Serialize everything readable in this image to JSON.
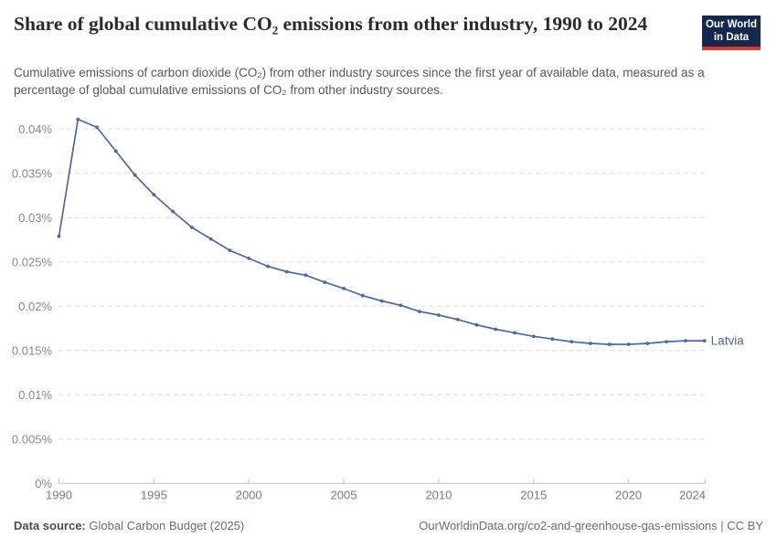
{
  "header": {
    "title": "Share of global cumulative CO₂ emissions from other industry, 1990 to 2024",
    "subtitle": "Cumulative emissions of carbon dioxide (CO₂) from other industry sources since the first year of available data, measured as a percentage of global cumulative emissions of CO₂ from other industry sources."
  },
  "logo": {
    "line1": "Our World",
    "line2": "in Data",
    "bg_color": "#12294d",
    "bar_color": "#e0372d"
  },
  "chart_data": {
    "type": "line",
    "title": "Share of global cumulative CO₂ emissions from other industry, 1990 to 2024",
    "unit": "%",
    "x": [
      1990,
      1991,
      1992,
      1993,
      1994,
      1995,
      1996,
      1997,
      1998,
      1999,
      2000,
      2001,
      2002,
      2003,
      2004,
      2005,
      2006,
      2007,
      2008,
      2009,
      2010,
      2011,
      2012,
      2013,
      2014,
      2015,
      2016,
      2017,
      2018,
      2019,
      2020,
      2021,
      2022,
      2023,
      2024
    ],
    "series": [
      {
        "name": "Latvia",
        "color": "#4a69a5",
        "values": [
          0.0279,
          0.0411,
          0.0402,
          0.0375,
          0.0348,
          0.0326,
          0.0307,
          0.0289,
          0.0276,
          0.0263,
          0.0254,
          0.0245,
          0.0239,
          0.0235,
          0.0227,
          0.022,
          0.0212,
          0.0206,
          0.0201,
          0.0194,
          0.019,
          0.0185,
          0.0179,
          0.0174,
          0.017,
          0.0166,
          0.0163,
          0.016,
          0.0158,
          0.0157,
          0.0157,
          0.0158,
          0.016,
          0.0161,
          0.0161
        ]
      }
    ],
    "xlim": [
      1990,
      2024
    ],
    "ylim": [
      0,
      0.041
    ],
    "x_ticks": [
      1990,
      1995,
      2000,
      2005,
      2010,
      2015,
      2020,
      2024
    ],
    "y_ticks": [
      0,
      0.005,
      0.01,
      0.015,
      0.02,
      0.025,
      0.03,
      0.035,
      0.04
    ],
    "y_tick_labels": [
      "0%",
      "0.005%",
      "0.01%",
      "0.015%",
      "0.02%",
      "0.025%",
      "0.03%",
      "0.035%",
      "0.04%"
    ],
    "grid": "horizontal-dashed",
    "legend": "line-end-label",
    "line_end_label": "Latvia"
  },
  "footer": {
    "source_label": "Data source:",
    "source_value": "Global Carbon Budget (2025)",
    "credit": "OurWorldinData.org/co2-and-greenhouse-gas-emissions | CC BY"
  }
}
